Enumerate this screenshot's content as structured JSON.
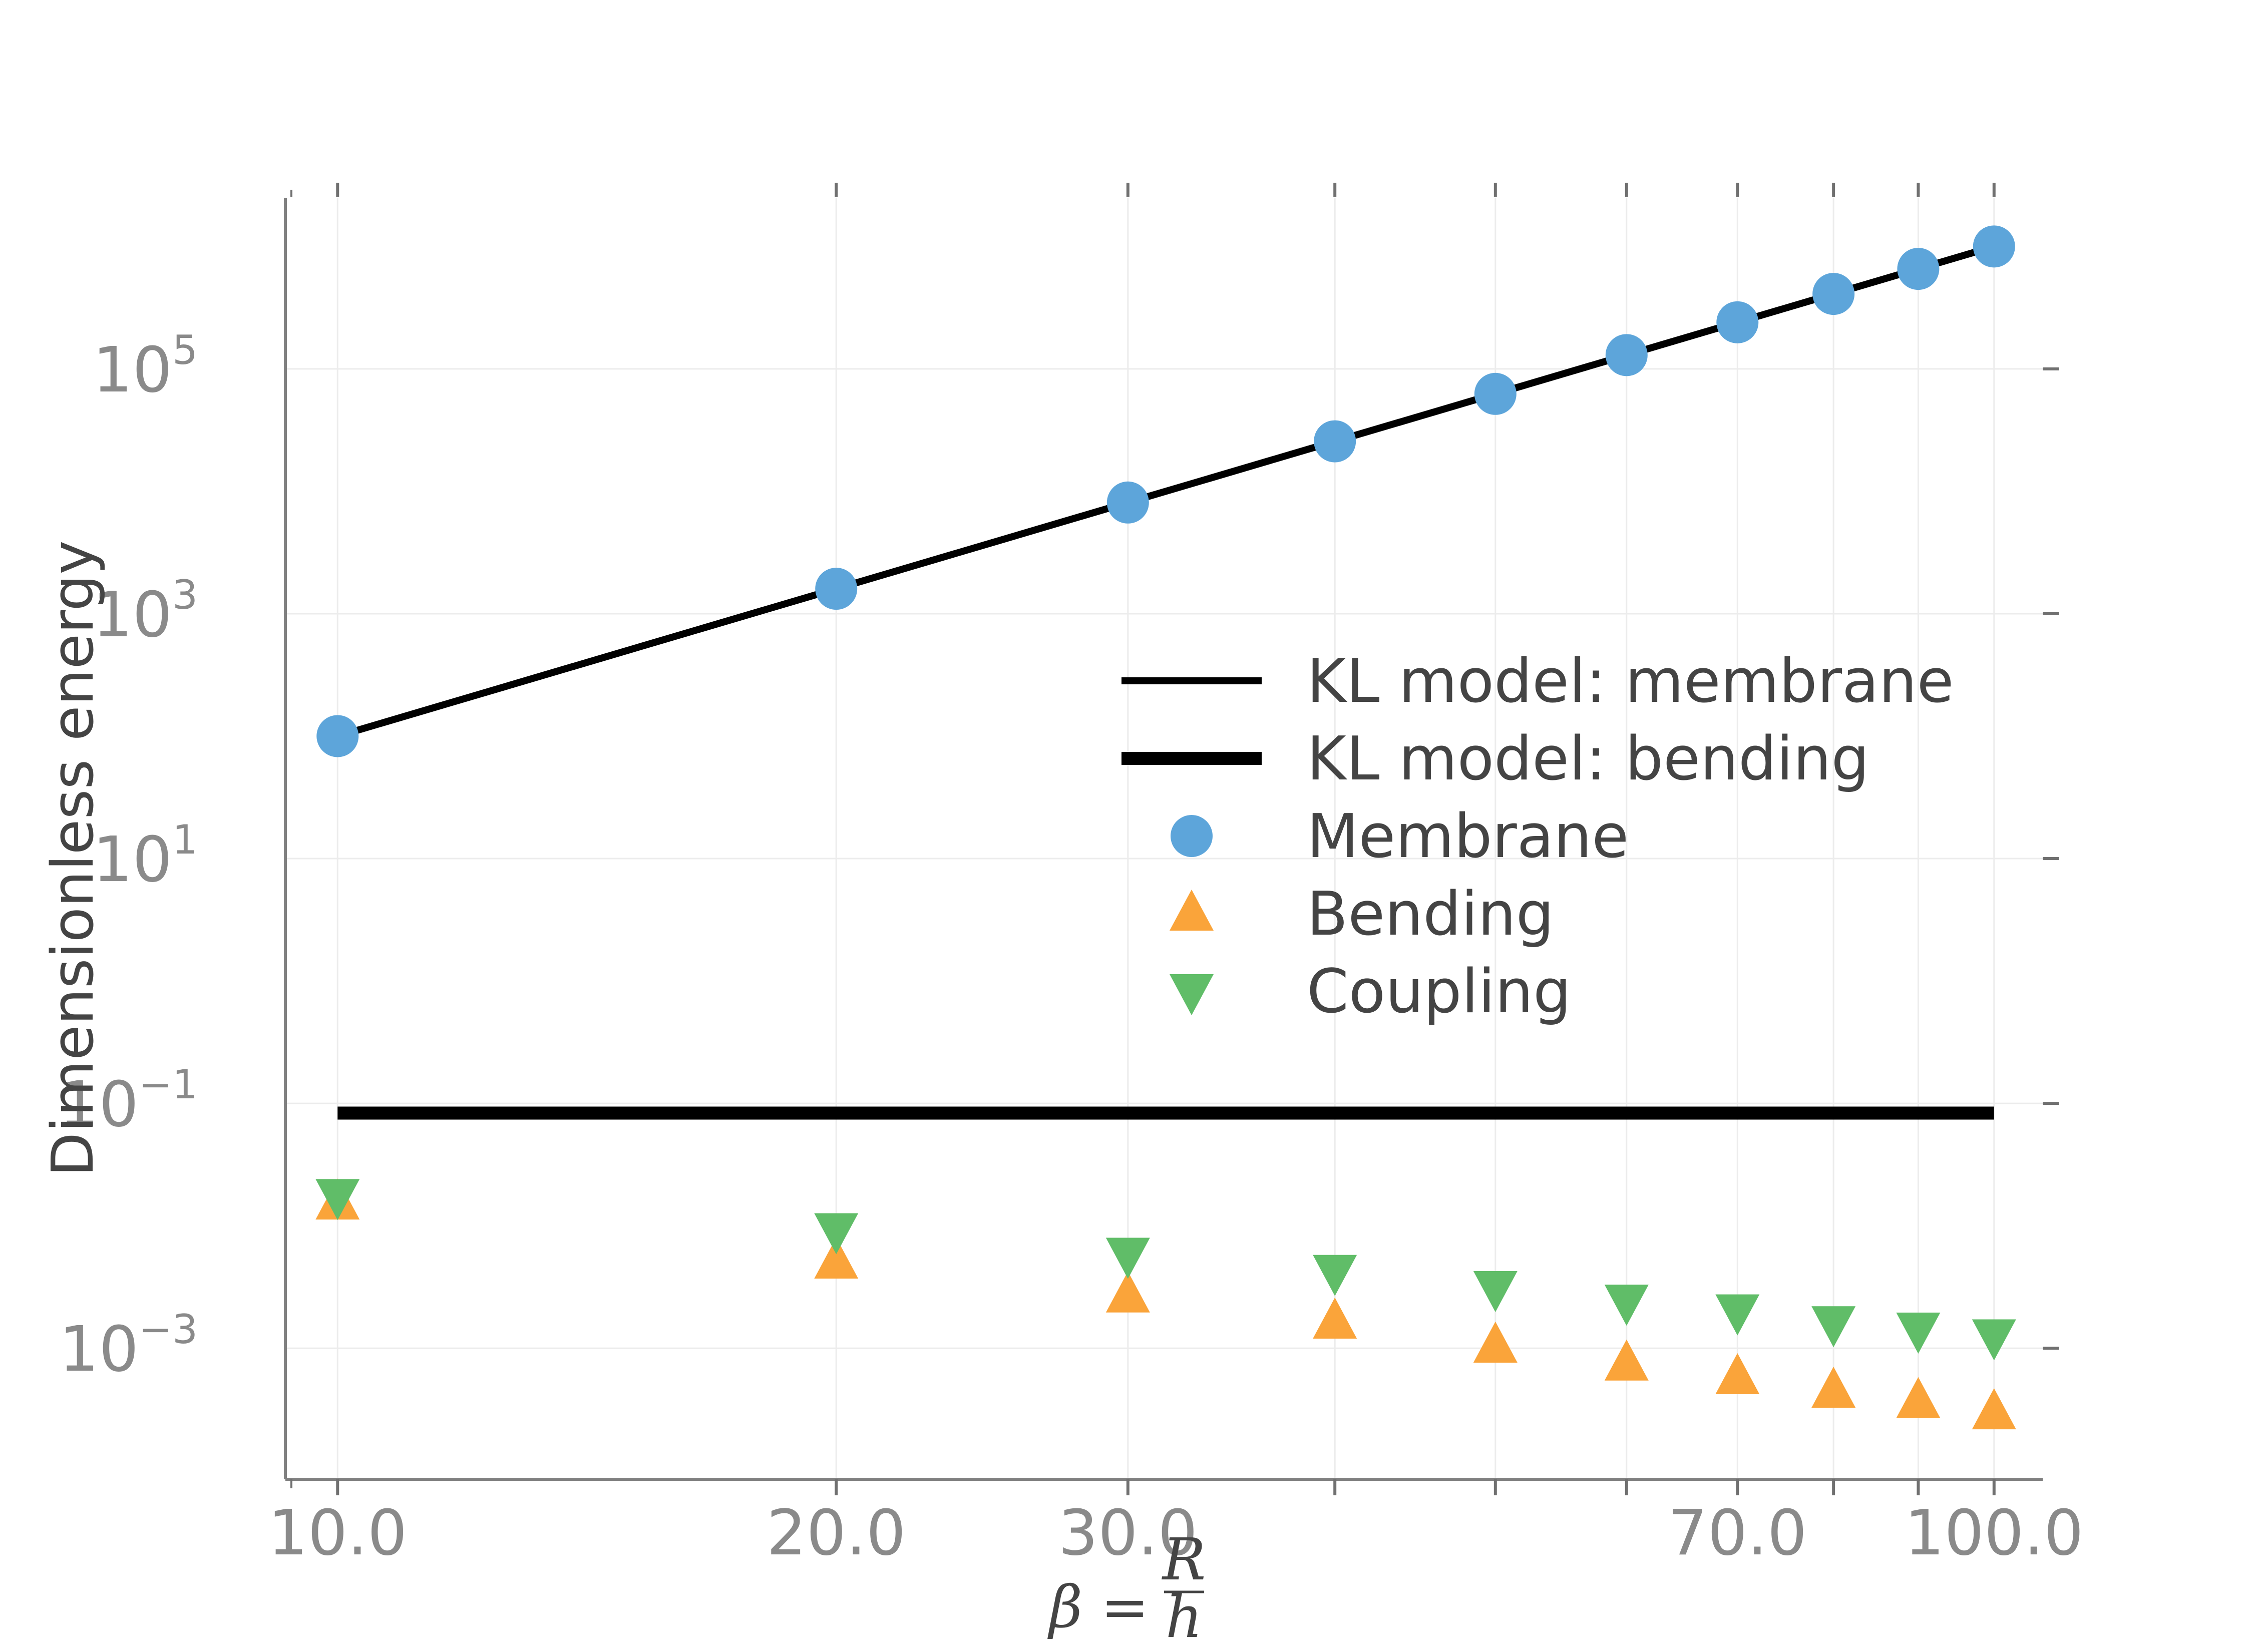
{
  "chart_data": {
    "type": "scatter",
    "x_scale": "log",
    "y_scale": "log",
    "xlim": [
      9.3,
      107
    ],
    "ylim": [
      8.5e-05,
      2500000
    ],
    "xlabel": {
      "prefix": "β = ",
      "numerator": "R",
      "denominator": "h"
    },
    "ylabel": "Dimensionless energy",
    "x_ticks": [
      10,
      20,
      30,
      40,
      50,
      60,
      70,
      80,
      90,
      100
    ],
    "x_tick_labels": [
      {
        "value": 10,
        "label": "10.0"
      },
      {
        "value": 20,
        "label": "20.0"
      },
      {
        "value": 30,
        "label": "30.0"
      },
      {
        "value": 70,
        "label": "70.0"
      },
      {
        "value": 100,
        "label": "100.0"
      }
    ],
    "y_ticks": [
      {
        "value": 100000,
        "base": "10",
        "exp": "5"
      },
      {
        "value": 1000,
        "base": "10",
        "exp": "3"
      },
      {
        "value": 10,
        "base": "10",
        "exp": "1"
      },
      {
        "value": 0.1,
        "base": "10",
        "exp": "−1"
      },
      {
        "value": 0.001,
        "base": "10",
        "exp": "−3"
      }
    ],
    "grid": true,
    "legend_position": "center-right",
    "x": [
      10,
      20,
      30,
      40,
      50,
      60,
      70,
      80,
      90,
      100
    ],
    "series": [
      {
        "name": "KL model: membrane",
        "kind": "line",
        "width": "thin",
        "color": "#000000",
        "values": [
          100,
          1600,
          8100,
          25600,
          62500,
          129600,
          240100,
          409600,
          656100,
          1000000
        ]
      },
      {
        "name": "KL model: bending",
        "kind": "line",
        "width": "thick",
        "color": "#000000",
        "values": [
          0.0833,
          0.0833,
          0.0833,
          0.0833,
          0.0833,
          0.0833,
          0.0833,
          0.0833,
          0.0833,
          0.0833
        ]
      },
      {
        "name": "Membrane",
        "kind": "marker",
        "marker": "circle",
        "color": "#5da5da",
        "values": [
          100,
          1600,
          8100,
          25600,
          62500,
          129600,
          240100,
          409600,
          656100,
          1000000
        ]
      },
      {
        "name": "Bending",
        "kind": "marker",
        "marker": "triangle-up",
        "color": "#faa43a",
        "values": [
          0.0155,
          0.0051,
          0.0027,
          0.00165,
          0.00105,
          0.00075,
          0.00058,
          0.00045,
          0.00037,
          0.0003
        ]
      },
      {
        "name": "Coupling",
        "kind": "marker",
        "marker": "triangle-down",
        "color": "#60bd68",
        "values": [
          0.0175,
          0.0092,
          0.0058,
          0.0042,
          0.0031,
          0.0024,
          0.002,
          0.0016,
          0.00142,
          0.00125
        ]
      }
    ]
  }
}
